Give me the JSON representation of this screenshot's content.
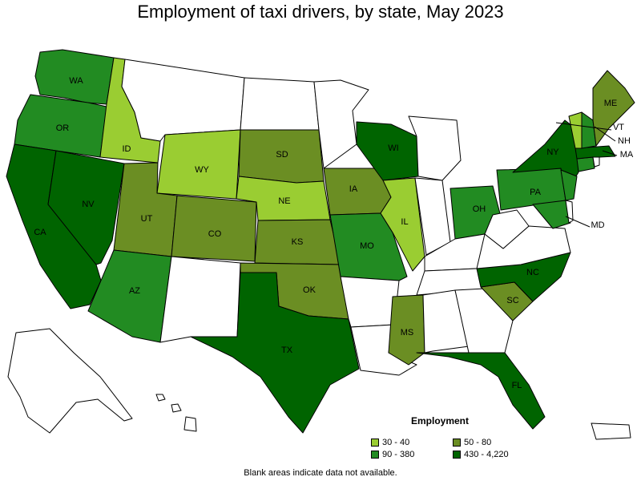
{
  "title": "Employment of taxi drivers, by state, May 2023",
  "legend": {
    "title": "Employment",
    "items": [
      {
        "label": "30 - 40",
        "color": "#9acd32"
      },
      {
        "label": "50 - 80",
        "color": "#6b8e23"
      },
      {
        "label": "90 - 380",
        "color": "#228b22"
      },
      {
        "label": "430 - 4,220",
        "color": "#006400"
      }
    ]
  },
  "footnote": "Blank areas indicate data not available.",
  "states": [
    {
      "code": "WA",
      "label": "WA",
      "bucket": "90 - 380"
    },
    {
      "code": "OR",
      "label": "OR",
      "bucket": "90 - 380"
    },
    {
      "code": "CA",
      "label": "CA",
      "bucket": "430 - 4,220"
    },
    {
      "code": "NV",
      "label": "NV",
      "bucket": "430 - 4,220"
    },
    {
      "code": "ID",
      "label": "ID",
      "bucket": "30 - 40"
    },
    {
      "code": "MT",
      "label": "",
      "bucket": ""
    },
    {
      "code": "WY",
      "label": "WY",
      "bucket": "30 - 40"
    },
    {
      "code": "UT",
      "label": "UT",
      "bucket": "50 - 80"
    },
    {
      "code": "AZ",
      "label": "AZ",
      "bucket": "90 - 380"
    },
    {
      "code": "CO",
      "label": "CO",
      "bucket": "50 - 80"
    },
    {
      "code": "NM",
      "label": "",
      "bucket": ""
    },
    {
      "code": "ND",
      "label": "",
      "bucket": ""
    },
    {
      "code": "SD",
      "label": "SD",
      "bucket": "50 - 80"
    },
    {
      "code": "NE",
      "label": "NE",
      "bucket": "30 - 40"
    },
    {
      "code": "KS",
      "label": "KS",
      "bucket": "50 - 80"
    },
    {
      "code": "OK",
      "label": "OK",
      "bucket": "50 - 80"
    },
    {
      "code": "TX",
      "label": "TX",
      "bucket": "430 - 4,220"
    },
    {
      "code": "MN",
      "label": "",
      "bucket": ""
    },
    {
      "code": "IA",
      "label": "IA",
      "bucket": "50 - 80"
    },
    {
      "code": "MO",
      "label": "MO",
      "bucket": "90 - 380"
    },
    {
      "code": "AR",
      "label": "",
      "bucket": ""
    },
    {
      "code": "LA",
      "label": "",
      "bucket": ""
    },
    {
      "code": "WI",
      "label": "WI",
      "bucket": "430 - 4,220"
    },
    {
      "code": "IL",
      "label": "IL",
      "bucket": "30 - 40"
    },
    {
      "code": "MI",
      "label": "",
      "bucket": ""
    },
    {
      "code": "IN",
      "label": "",
      "bucket": ""
    },
    {
      "code": "OH",
      "label": "OH",
      "bucket": "90 - 380"
    },
    {
      "code": "KY",
      "label": "",
      "bucket": ""
    },
    {
      "code": "TN",
      "label": "",
      "bucket": ""
    },
    {
      "code": "MS",
      "label": "MS",
      "bucket": "50 - 80"
    },
    {
      "code": "AL",
      "label": "",
      "bucket": ""
    },
    {
      "code": "GA",
      "label": "",
      "bucket": ""
    },
    {
      "code": "FL",
      "label": "FL",
      "bucket": "430 - 4,220"
    },
    {
      "code": "SC",
      "label": "SC",
      "bucket": "50 - 80"
    },
    {
      "code": "NC",
      "label": "NC",
      "bucket": "430 - 4,220"
    },
    {
      "code": "VA",
      "label": "",
      "bucket": ""
    },
    {
      "code": "WV",
      "label": "",
      "bucket": ""
    },
    {
      "code": "PA",
      "label": "PA",
      "bucket": "90 - 380"
    },
    {
      "code": "NY",
      "label": "NY",
      "bucket": "430 - 4,220"
    },
    {
      "code": "MD",
      "label": "MD",
      "bucket": "90 - 380"
    },
    {
      "code": "DE",
      "label": "",
      "bucket": ""
    },
    {
      "code": "NJ",
      "label": "",
      "bucket": "90 - 380"
    },
    {
      "code": "CT",
      "label": "",
      "bucket": "90 - 380"
    },
    {
      "code": "RI",
      "label": "",
      "bucket": ""
    },
    {
      "code": "MA",
      "label": "MA",
      "bucket": "430 - 4,220"
    },
    {
      "code": "VT",
      "label": "VT",
      "bucket": "30 - 40"
    },
    {
      "code": "NH",
      "label": "NH",
      "bucket": "90 - 380"
    },
    {
      "code": "ME",
      "label": "ME",
      "bucket": "50 - 80"
    },
    {
      "code": "AK",
      "label": "",
      "bucket": ""
    },
    {
      "code": "HI",
      "label": "",
      "bucket": ""
    },
    {
      "code": "PR",
      "label": "",
      "bucket": ""
    }
  ]
}
